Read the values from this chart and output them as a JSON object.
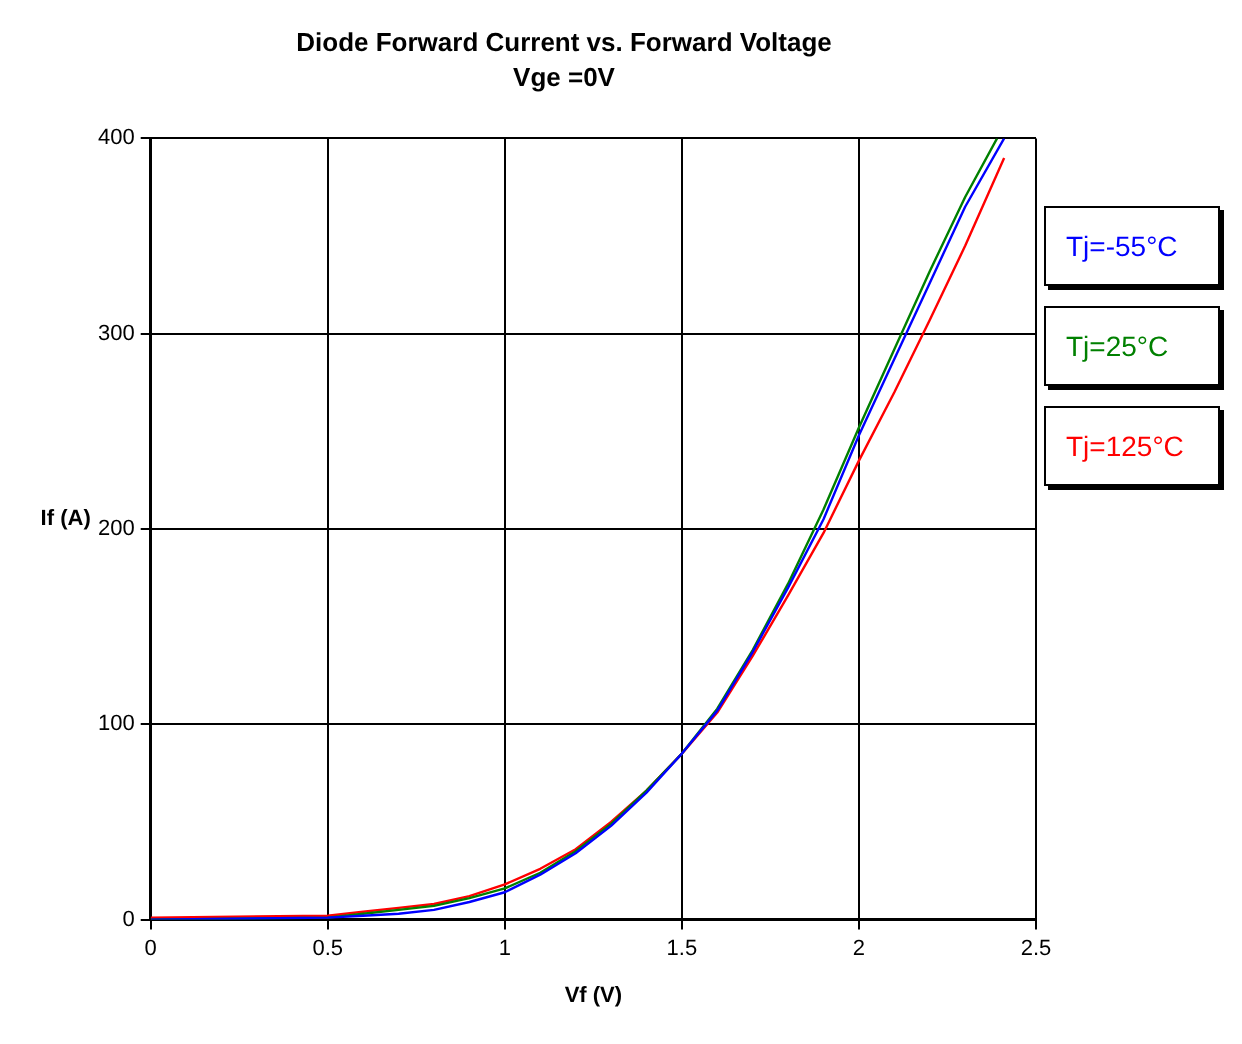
{
  "chart_data": {
    "type": "line",
    "title": "Diode Forward Current vs. Forward Voltage",
    "subtitle": "Vge =0V",
    "xlabel": "Vf (V)",
    "ylabel": "If (A)",
    "xlim": [
      0,
      2.5
    ],
    "xticks": [
      0,
      0.5,
      1,
      1.5,
      2,
      2.5
    ],
    "ylim": [
      0,
      400
    ],
    "yticks": [
      0,
      100,
      200,
      300,
      400
    ],
    "grid": true,
    "legend": "right",
    "marker": "none",
    "line_style": "solid",
    "series": [
      {
        "name": "Tj=-55°C",
        "color": "#0000ff",
        "x": [
          0,
          0.5,
          0.6,
          0.7,
          0.8,
          0.9,
          1.0,
          1.1,
          1.2,
          1.3,
          1.4,
          1.5,
          1.6,
          1.7,
          1.8,
          1.9,
          2.0,
          2.1,
          2.2,
          2.3,
          2.41
        ],
        "values": [
          0,
          1,
          2,
          3,
          5,
          9,
          14,
          23,
          34,
          48,
          65,
          85,
          107,
          137,
          170,
          205,
          248,
          287,
          326,
          365,
          400
        ]
      },
      {
        "name": "Tj=25°C",
        "color": "#008000",
        "x": [
          0,
          0.5,
          0.6,
          0.7,
          0.8,
          0.9,
          1.0,
          1.1,
          1.2,
          1.3,
          1.4,
          1.5,
          1.6,
          1.7,
          1.8,
          1.9,
          2.0,
          2.1,
          2.2,
          2.3,
          2.39
        ],
        "values": [
          0,
          1,
          3,
          5,
          7,
          11,
          16,
          24,
          35,
          49,
          66,
          85,
          108,
          138,
          172,
          210,
          252,
          292,
          332,
          370,
          400
        ]
      },
      {
        "name": "Tj=125°C",
        "color": "#ff0000",
        "x": [
          0,
          0.5,
          0.6,
          0.7,
          0.8,
          0.9,
          1.0,
          1.1,
          1.2,
          1.3,
          1.4,
          1.5,
          1.6,
          1.7,
          1.8,
          1.9,
          2.0,
          2.1,
          2.2,
          2.3,
          2.41
        ],
        "values": [
          1,
          2,
          4,
          6,
          8,
          12,
          18,
          26,
          36,
          50,
          66,
          85,
          106,
          135,
          166,
          198,
          235,
          270,
          307,
          345,
          390
        ]
      }
    ]
  }
}
